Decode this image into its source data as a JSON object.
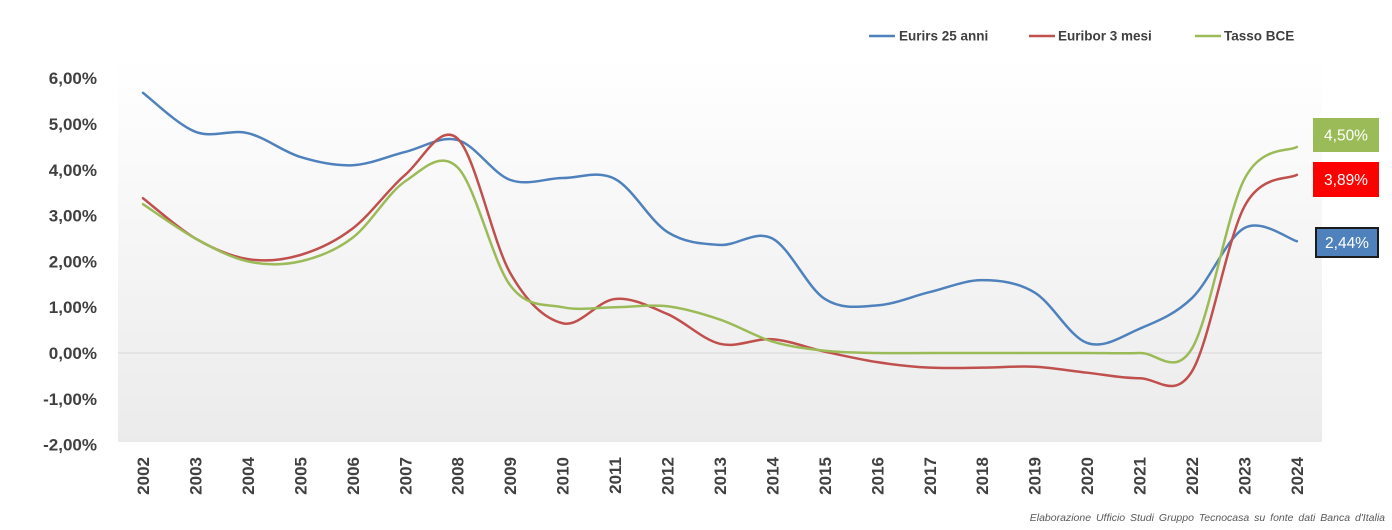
{
  "chart_data": {
    "type": "line",
    "categories": [
      "2002",
      "2003",
      "2004",
      "2005",
      "2006",
      "2007",
      "2008",
      "2009",
      "2010",
      "2011",
      "2012",
      "2013",
      "2014",
      "2015",
      "2016",
      "2017",
      "2018",
      "2019",
      "2020",
      "2021",
      "2022",
      "2023",
      "2024"
    ],
    "ylim": [
      -2,
      6
    ],
    "y_ticks": [
      6,
      5,
      4,
      3,
      2,
      1,
      0,
      -1,
      -2
    ],
    "y_tick_labels": [
      "6,00%",
      "5,00%",
      "4,00%",
      "3,00%",
      "2,00%",
      "1,00%",
      "0,00%",
      "-1,00%",
      "-2,00%"
    ],
    "legend_position": "top-right",
    "grid": false,
    "series": [
      {
        "name": "Eurirs 25 anni",
        "color": "#4F81BD",
        "label_color": "#4F81BD",
        "end_label": "2,44%",
        "values": [
          5.68,
          4.83,
          4.8,
          4.28,
          4.1,
          4.39,
          4.65,
          3.78,
          3.82,
          3.8,
          2.64,
          2.36,
          2.5,
          1.18,
          1.04,
          1.33,
          1.59,
          1.32,
          0.22,
          0.53,
          1.2,
          2.73,
          2.44
        ]
      },
      {
        "name": "Euribor 3 mesi",
        "color": "#C0504D",
        "label_color": "#FF0000",
        "end_label": "3,89%",
        "values": [
          3.38,
          2.5,
          2.05,
          2.14,
          2.72,
          3.89,
          4.68,
          1.75,
          0.65,
          1.18,
          0.85,
          0.2,
          0.3,
          0.03,
          -0.2,
          -0.32,
          -0.32,
          -0.3,
          -0.43,
          -0.55,
          -0.4,
          3.2,
          3.89
        ]
      },
      {
        "name": "Tasso BCE",
        "color": "#9BBB59",
        "label_color": "#9BBB59",
        "end_label": "4,50%",
        "values": [
          3.25,
          2.5,
          2.0,
          2.0,
          2.52,
          3.75,
          4.05,
          1.48,
          1.0,
          1.0,
          1.02,
          0.73,
          0.25,
          0.05,
          0.0,
          0.0,
          0.0,
          0.0,
          0.0,
          0.0,
          0.1,
          3.8,
          4.5
        ]
      }
    ]
  },
  "source_note": "Elaborazione Ufficio Studi Gruppo Tecnocasa su fonte dati Banca d'Italia"
}
